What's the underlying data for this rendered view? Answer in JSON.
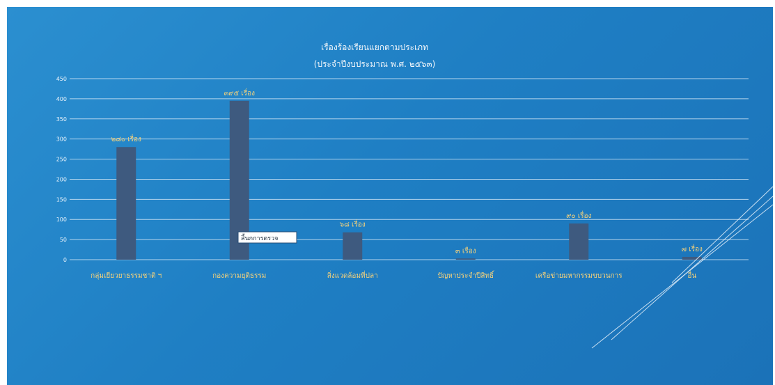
{
  "chart_data": {
    "type": "bar",
    "title": "เรื่องร้องเรียนแยกตามประเภท",
    "subtitle": "(ประจำปีงบประมาณ พ.ศ. ๒๕๖๓)",
    "xlabel": "",
    "ylabel": "",
    "ylim": [
      0,
      450
    ],
    "yticks": [
      "0",
      "50",
      "100",
      "150",
      "200",
      "250",
      "300",
      "350",
      "400",
      "450"
    ],
    "grid": true,
    "categories": [
      "กลุ่มเยียวยาธรรมชาติ ฯ",
      "กองความยุติธรรม",
      "สิ่งแวดล้อมที่ปลา",
      "ปัญหาประจำปีสิทธิ์",
      "เครือข่ายมหากรรมขบวนการ",
      "อื่น"
    ],
    "values": [
      280,
      395,
      68,
      3,
      90,
      7
    ],
    "data_labels": [
      "๒๘๐ เรื่อง",
      "๓๙๕ เรื่อง",
      "๖๘ เรื่อง",
      "๓ เรื่อง",
      "๙๐ เรื่อง",
      "๗ เรื่อง"
    ]
  },
  "annotation": {
    "text": "สิ้นกการตรวจ"
  },
  "colors": {
    "background": "#1f7fc4",
    "bar": "#3e5a7f",
    "label": "#f6d27a",
    "grid": "#cfe4f4"
  }
}
